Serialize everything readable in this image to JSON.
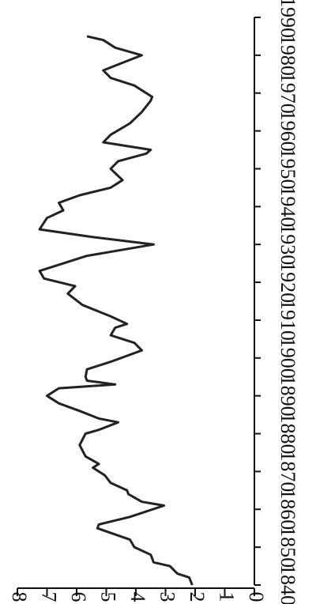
{
  "chart_data": {
    "type": "line",
    "x": [
      1840,
      1842,
      1843,
      1845,
      1846,
      1848,
      1850,
      1852,
      1855,
      1856,
      1858,
      1861,
      1862,
      1864,
      1865,
      1867,
      1869,
      1871,
      1872,
      1874,
      1877,
      1880,
      1881,
      1883,
      1884,
      1886,
      1888,
      1890,
      1892,
      1893,
      1894,
      1895,
      1897,
      1899,
      1902,
      1904,
      1906,
      1908,
      1909,
      1911,
      1914,
      1917,
      1919,
      1921,
      1923,
      1927,
      1930,
      1932,
      1934,
      1937,
      1939,
      1941,
      1943,
      1945,
      1947,
      1950,
      1952,
      1954,
      1955,
      1957,
      1959,
      1962,
      1965,
      1968,
      1969,
      1972,
      1974,
      1976,
      1978,
      1980,
      1982,
      1984,
      1985
    ],
    "values": [
      2.1,
      2.2,
      2.6,
      2.85,
      3.4,
      3.5,
      4.05,
      4.2,
      5.3,
      5.25,
      4.2,
      3.05,
      3.8,
      4.25,
      4.3,
      4.85,
      5.05,
      5.45,
      5.25,
      5.7,
      5.9,
      5.7,
      5.25,
      4.6,
      5.25,
      5.9,
      6.6,
      7.0,
      6.6,
      4.7,
      5.65,
      5.7,
      5.65,
      4.85,
      3.8,
      4.05,
      4.85,
      4.7,
      4.3,
      4.85,
      5.8,
      6.3,
      6.05,
      7.1,
      7.25,
      5.65,
      3.4,
      5.5,
      7.25,
      7.0,
      6.45,
      6.6,
      5.9,
      4.85,
      4.45,
      4.85,
      4.6,
      3.65,
      3.5,
      5.1,
      4.85,
      4.2,
      3.8,
      3.5,
      3.45,
      4.05,
      4.85,
      5.1,
      4.45,
      3.8,
      4.7,
      5.1,
      5.65
    ],
    "color": "#222222",
    "xlim": [
      1840,
      1990
    ],
    "xticks": [
      1840,
      1850,
      1860,
      1870,
      1880,
      1890,
      1900,
      1910,
      1920,
      1930,
      1940,
      1950,
      1960,
      1970,
      1980,
      1990
    ],
    "ylim": [
      0,
      8
    ],
    "yticks": [
      0,
      1,
      2,
      3,
      4,
      5,
      6,
      7,
      8
    ]
  }
}
